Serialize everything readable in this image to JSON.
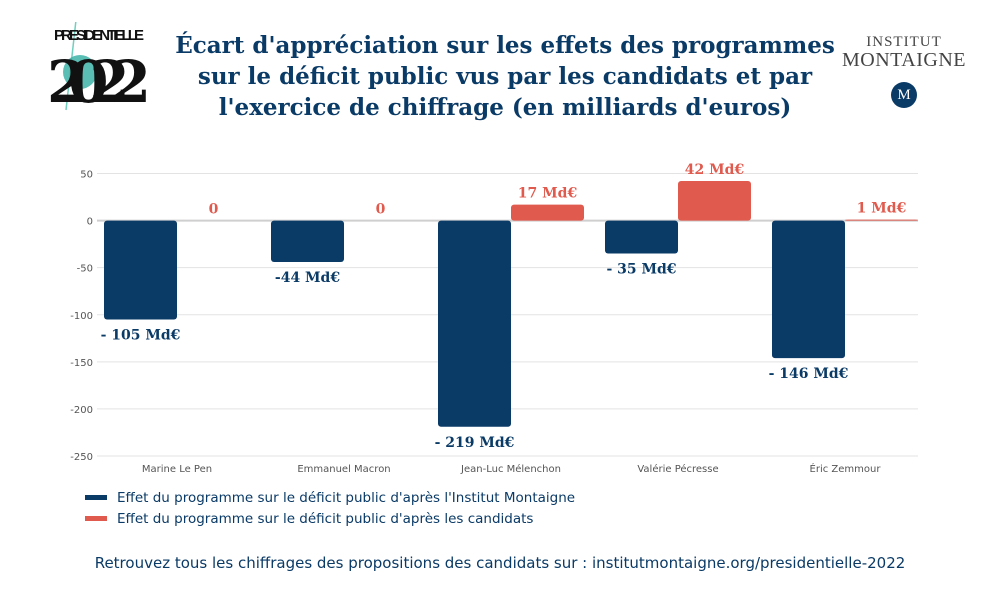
{
  "logo_left": {
    "text_top": "PRESIDENTIELLE",
    "text_year": "2022"
  },
  "logo_right": {
    "line1": "INSTITUT",
    "line2": "MONTAIGNE",
    "mark": "M"
  },
  "title": "Écart d'appréciation sur les effets des programmes sur le déficit public vus par les candidats et par l'exercice de chiffrage (en milliards d'euros)",
  "colors": {
    "institut": "#0a3a66",
    "candidats": "#e05a4e",
    "title": "#0a3a66"
  },
  "chart_data": {
    "type": "bar",
    "categories": [
      "Marine Le Pen",
      "Emmanuel Macron",
      "Jean-Luc Mélenchon",
      "Valérie Pécresse",
      "Éric Zemmour"
    ],
    "series": [
      {
        "name": "Effet du programme sur le déficit public d'après l'Institut Montaigne",
        "values": [
          -105,
          -44,
          -219,
          -35,
          -146
        ],
        "labels": [
          "- 105 Md€",
          "-44 Md€",
          "- 219 Md€",
          "- 35 Md€",
          "- 146 Md€"
        ],
        "color": "#0a3a66"
      },
      {
        "name": "Effet du programme sur le déficit public d'après les candidats",
        "values": [
          0,
          0,
          17,
          42,
          1
        ],
        "labels": [
          "0",
          "0",
          "17 Md€",
          "42 Md€",
          "1 Md€"
        ],
        "color": "#e05a4e"
      }
    ],
    "ylim": [
      -250,
      50
    ],
    "yticks": [
      50,
      0,
      -50,
      -100,
      -150,
      -200,
      -250
    ],
    "grid": true,
    "legend": "bottom"
  },
  "footer": "Retrouvez tous les chiffrages des propositions des candidats sur : institutmontaigne.org/presidentielle-2022"
}
